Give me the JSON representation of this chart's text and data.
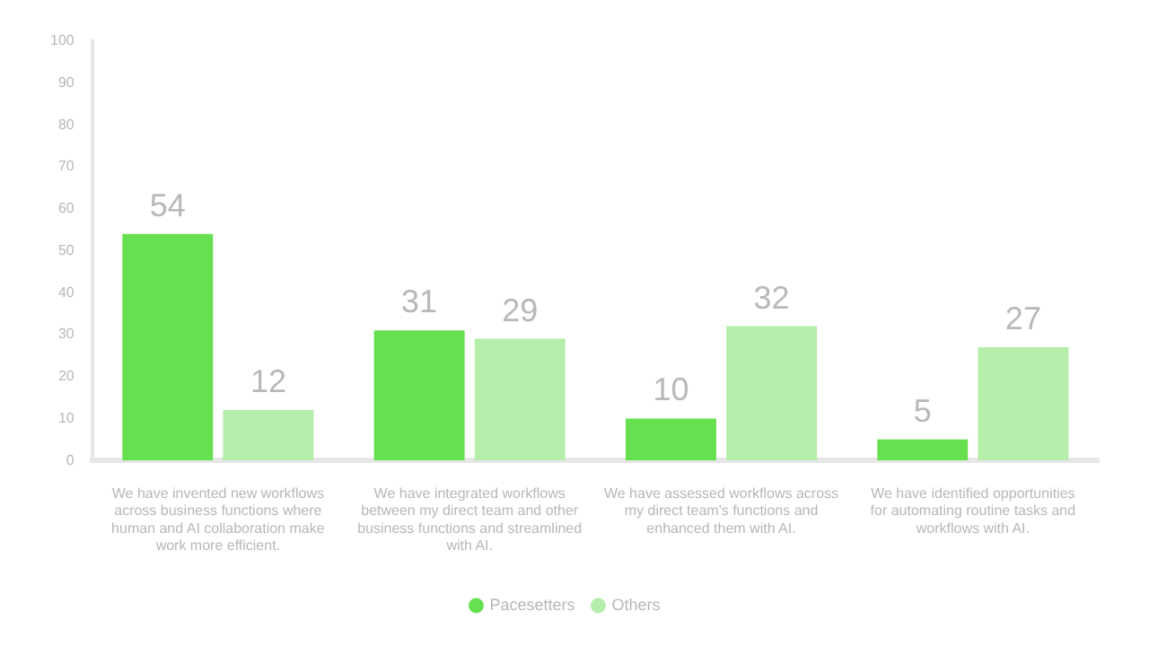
{
  "chart_data": {
    "type": "bar",
    "categories": [
      "We have invented new workflows across business functions where human and AI collaboration make work more efficient.",
      "We have integrated workflows between my direct team and other business functions and streamlined with AI.",
      "We have assessed workflows across my direct team's functions and enhanced them with AI.",
      "We have identified opportunities for automating routine tasks and workflows with AI."
    ],
    "series": [
      {
        "name": "Pacesetters",
        "color": "#66e04f",
        "values": [
          54,
          31,
          10,
          5
        ]
      },
      {
        "name": "Others",
        "color": "#b5eeaa",
        "values": [
          12,
          29,
          32,
          27
        ]
      }
    ],
    "ylim": [
      0,
      100
    ],
    "yticks": [
      0,
      10,
      20,
      30,
      40,
      50,
      60,
      70,
      80,
      90,
      100
    ],
    "data_labels": true,
    "grid": false,
    "legend": "bottom"
  }
}
